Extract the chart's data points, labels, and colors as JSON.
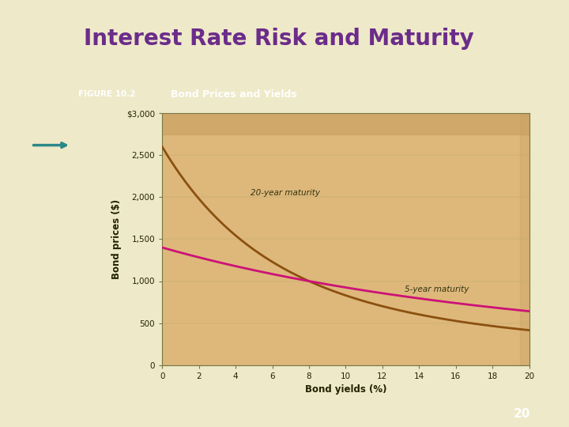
{
  "title": "Interest Rate Risk and Maturity",
  "title_color": "#6B2C8A",
  "slide_bg": "#EEE9C8",
  "figure_title": "Bond Prices and Yields",
  "figure_title_bg": "#A08A00",
  "figure_label": "FIGURE 10.2",
  "figure_label_bg": "#2A8888",
  "plot_bg": "#DDB87A",
  "xlabel": "Bond yields (%)",
  "ylabel": "Bond prices ($)",
  "coupon_rate": 8,
  "face_value": 1000,
  "maturity_5": 5,
  "maturity_20": 20,
  "line_color_5yr": "#CC1177",
  "line_color_20yr": "#8B5010",
  "label_5yr": "5-year maturity",
  "label_20yr": "20-year maturity",
  "xlim": [
    0,
    20
  ],
  "ylim": [
    0,
    3000
  ],
  "yticks": [
    0,
    500,
    1000,
    1500,
    2000,
    2500,
    3000
  ],
  "xticks": [
    0,
    2,
    4,
    6,
    8,
    10,
    12,
    14,
    16,
    18,
    20
  ],
  "page_number": "20",
  "page_num_bg": "#7B0080",
  "border_teal": "#2A8888",
  "border_yellow": "#C8B020",
  "border_orange": "#E07820",
  "title_fontsize": 20
}
